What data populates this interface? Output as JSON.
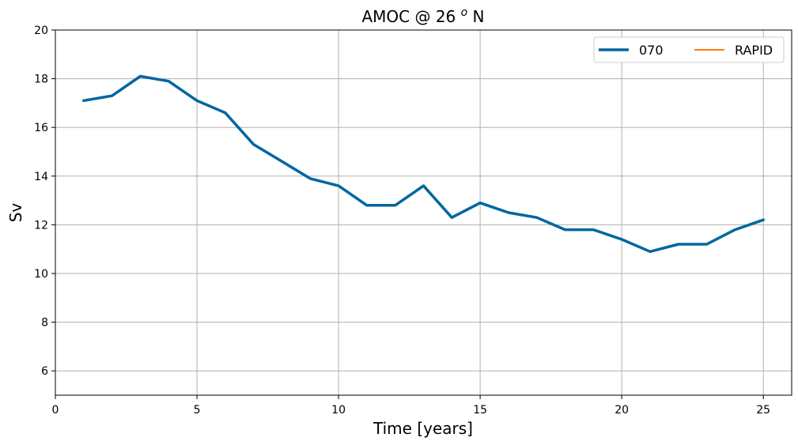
{
  "chart_data": {
    "type": "line",
    "title_main": "AMOC @ 26 ",
    "title_sup": "o",
    "title_tail": " N",
    "xlabel": "Time [years]",
    "ylabel": "Sv",
    "xlim": [
      0,
      26
    ],
    "ylim": [
      5,
      20
    ],
    "xticks": [
      0,
      5,
      10,
      15,
      20,
      25
    ],
    "yticks": [
      6,
      8,
      10,
      12,
      14,
      16,
      18,
      20
    ],
    "grid": true,
    "legend_position": "top-right",
    "series": [
      {
        "name": "070",
        "color": "#0066a0",
        "x": [
          1,
          2,
          3,
          4,
          5,
          6,
          7,
          8,
          9,
          10,
          11,
          12,
          13,
          14,
          15,
          16,
          17,
          18,
          19,
          20,
          21,
          22,
          23,
          24,
          25
        ],
        "values": [
          17.1,
          17.3,
          18.1,
          17.9,
          17.1,
          16.6,
          15.3,
          14.6,
          13.9,
          13.6,
          12.8,
          12.8,
          13.6,
          12.3,
          12.9,
          12.5,
          12.3,
          11.8,
          11.8,
          11.4,
          10.9,
          11.2,
          11.2,
          11.8,
          12.2
        ]
      },
      {
        "name": "RAPID",
        "color": "#ff7f0e",
        "x": [],
        "values": []
      }
    ]
  }
}
